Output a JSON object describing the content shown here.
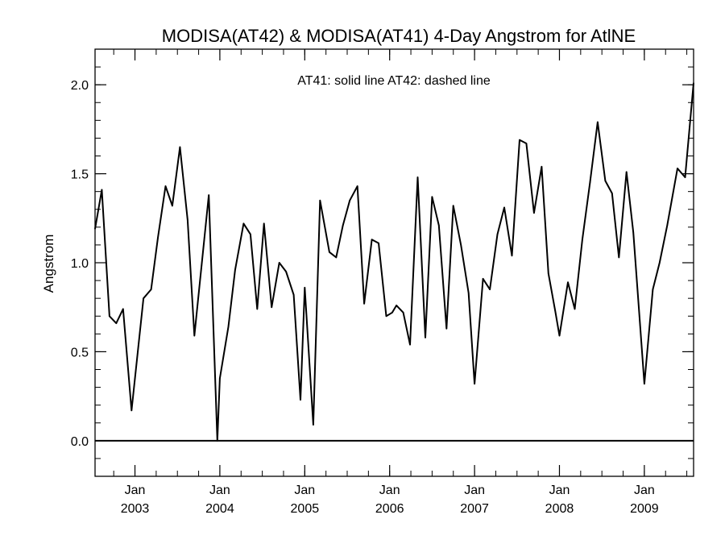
{
  "chart_data": {
    "type": "line",
    "title": "MODISA(AT42) & MODISA(AT41) 4-Day Angstrom for AtlNE",
    "annotation": "AT41: solid line   AT42: dashed line",
    "ylabel": "Angstrom",
    "xlabel": "",
    "xlim": [
      2002.45,
      2009.5
    ],
    "ylim": [
      -0.2,
      2.2
    ],
    "yticks": [
      0.0,
      0.5,
      1.0,
      1.5,
      2.0
    ],
    "ytick_labels": [
      "0.0",
      "0.5",
      "1.0",
      "1.5",
      "2.0"
    ],
    "xticks": [
      2002.92,
      2003.92,
      2004.92,
      2005.92,
      2006.92,
      2007.92,
      2008.92
    ],
    "xtick_labels": [
      {
        "month": "Jan",
        "year": "2003"
      },
      {
        "month": "Jan",
        "year": "2004"
      },
      {
        "month": "Jan",
        "year": "2005"
      },
      {
        "month": "Jan",
        "year": "2006"
      },
      {
        "month": "Jan",
        "year": "2007"
      },
      {
        "month": "Jan",
        "year": "2008"
      },
      {
        "month": "Jan",
        "year": "2009"
      }
    ],
    "reference_line": 0.0,
    "series": [
      {
        "name": "AT41",
        "style": "solid",
        "color": "#000000",
        "points": [
          [
            2002.45,
            1.19
          ],
          [
            2002.53,
            1.41
          ],
          [
            2002.62,
            0.7
          ],
          [
            2002.7,
            0.66
          ],
          [
            2002.78,
            0.74
          ],
          [
            2002.88,
            0.17
          ],
          [
            2003.02,
            0.8
          ],
          [
            2003.11,
            0.85
          ],
          [
            2003.19,
            1.14
          ],
          [
            2003.28,
            1.43
          ],
          [
            2003.36,
            1.32
          ],
          [
            2003.45,
            1.65
          ],
          [
            2003.54,
            1.24
          ],
          [
            2003.62,
            0.59
          ],
          [
            2003.79,
            1.38
          ],
          [
            2003.89,
            0.0
          ],
          [
            2003.92,
            0.35
          ],
          [
            2004.02,
            0.64
          ],
          [
            2004.1,
            0.96
          ],
          [
            2004.2,
            1.22
          ],
          [
            2004.28,
            1.16
          ],
          [
            2004.36,
            0.74
          ],
          [
            2004.44,
            1.22
          ],
          [
            2004.53,
            0.75
          ],
          [
            2004.62,
            1.0
          ],
          [
            2004.7,
            0.95
          ],
          [
            2004.79,
            0.82
          ],
          [
            2004.87,
            0.23
          ],
          [
            2004.92,
            0.86
          ],
          [
            2005.02,
            0.09
          ],
          [
            2005.1,
            1.35
          ],
          [
            2005.21,
            1.06
          ],
          [
            2005.29,
            1.03
          ],
          [
            2005.37,
            1.21
          ],
          [
            2005.45,
            1.35
          ],
          [
            2005.54,
            1.43
          ],
          [
            2005.62,
            0.77
          ],
          [
            2005.71,
            1.13
          ],
          [
            2005.79,
            1.11
          ],
          [
            2005.88,
            0.7
          ],
          [
            2005.95,
            0.72
          ],
          [
            2006.0,
            0.76
          ],
          [
            2006.08,
            0.72
          ],
          [
            2006.16,
            0.54
          ],
          [
            2006.25,
            1.48
          ],
          [
            2006.34,
            0.58
          ],
          [
            2006.42,
            1.37
          ],
          [
            2006.5,
            1.21
          ],
          [
            2006.59,
            0.63
          ],
          [
            2006.67,
            1.32
          ],
          [
            2006.76,
            1.1
          ],
          [
            2006.85,
            0.83
          ],
          [
            2006.92,
            0.32
          ],
          [
            2007.02,
            0.91
          ],
          [
            2007.1,
            0.85
          ],
          [
            2007.19,
            1.16
          ],
          [
            2007.27,
            1.31
          ],
          [
            2007.36,
            1.04
          ],
          [
            2007.45,
            1.69
          ],
          [
            2007.53,
            1.67
          ],
          [
            2007.62,
            1.28
          ],
          [
            2007.71,
            1.54
          ],
          [
            2007.79,
            0.94
          ],
          [
            2007.87,
            0.73
          ],
          [
            2007.92,
            0.59
          ],
          [
            2008.02,
            0.89
          ],
          [
            2008.1,
            0.74
          ],
          [
            2008.19,
            1.13
          ],
          [
            2008.28,
            1.45
          ],
          [
            2008.37,
            1.79
          ],
          [
            2008.46,
            1.46
          ],
          [
            2008.54,
            1.39
          ],
          [
            2008.62,
            1.03
          ],
          [
            2008.71,
            1.51
          ],
          [
            2008.79,
            1.17
          ],
          [
            2008.87,
            0.65
          ],
          [
            2008.92,
            0.32
          ],
          [
            2009.02,
            0.85
          ],
          [
            2009.1,
            1.0
          ],
          [
            2009.19,
            1.21
          ],
          [
            2009.31,
            1.53
          ],
          [
            2009.4,
            1.48
          ],
          [
            2009.5,
            2.01
          ]
        ]
      }
    ],
    "grid": false
  }
}
